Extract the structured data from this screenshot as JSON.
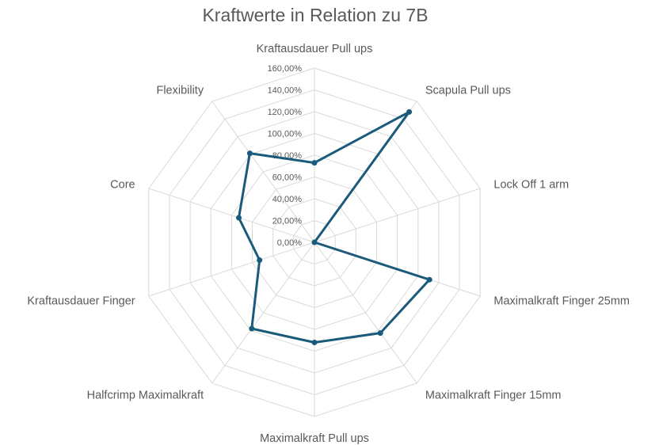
{
  "chart_data": {
    "type": "radar",
    "title": "Kraftwerte in Relation zu 7B",
    "categories": [
      "Kraftausdauer Pull ups",
      "Scapula Pull ups",
      "Lock Off 1 arm",
      "Maximalkraft Finger 25mm",
      "Maximalkraft Finger 15mm",
      "Maximalkraft Pull ups",
      "Halfcrimp Maximalkraft",
      "Kraftausdauer Finger",
      "Core",
      "Flexibility"
    ],
    "values": [
      0.73,
      1.48,
      0.0,
      1.11,
      1.03,
      0.92,
      0.98,
      0.53,
      0.73,
      1.01
    ],
    "rlim": [
      0,
      1.6
    ],
    "ticks": [
      "0,00%",
      "20,00%",
      "40,00%",
      "60,00%",
      "80,00%",
      "100,00%",
      "120,00%",
      "140,00%",
      "160,00%"
    ],
    "series_color": "#1a5a7a",
    "grid_color": "#d9d9d9",
    "grid": true,
    "legend": "none"
  }
}
